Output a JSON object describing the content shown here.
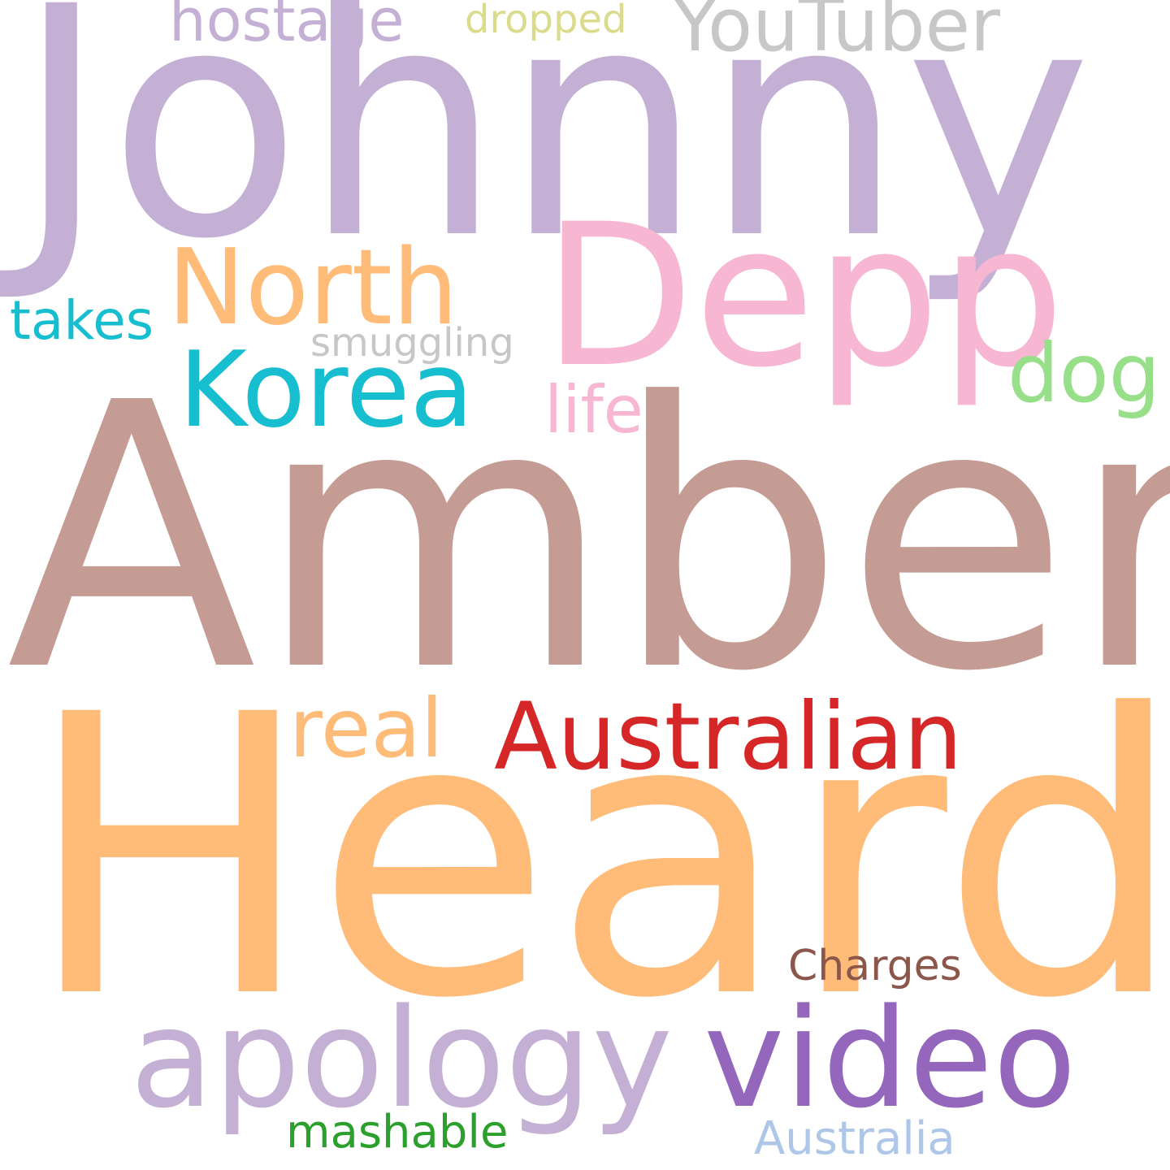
{
  "words": {
    "johnny": {
      "text": "Johnny",
      "color": "#c5b0d5"
    },
    "amber": {
      "text": "Amber",
      "color": "#c49c94"
    },
    "heard": {
      "text": "Heard",
      "color": "#ffbb78"
    },
    "depp": {
      "text": "Depp",
      "color": "#f7b6d2"
    },
    "north": {
      "text": "North",
      "color": "#ffbb78"
    },
    "korea": {
      "text": "Korea",
      "color": "#17becf"
    },
    "australian": {
      "text": "Australian",
      "color": "#d62728"
    },
    "apology": {
      "text": "apology",
      "color": "#c5b0d5"
    },
    "video": {
      "text": "video",
      "color": "#9467bd"
    },
    "youtuber": {
      "text": "YouTuber",
      "color": "#c7c7c7"
    },
    "hostage": {
      "text": "hostage",
      "color": "#c5b0d5"
    },
    "dropped": {
      "text": "dropped",
      "color": "#dbdb8d"
    },
    "takes": {
      "text": "takes",
      "color": "#17becf"
    },
    "smuggling": {
      "text": "smuggling",
      "color": "#c7c7c7"
    },
    "dog": {
      "text": "dog",
      "color": "#98df8a"
    },
    "life": {
      "text": "life",
      "color": "#f7b6d2"
    },
    "real": {
      "text": "real",
      "color": "#ffbb78"
    },
    "charges": {
      "text": "Charges",
      "color": "#8c564b"
    },
    "mashable": {
      "text": "mashable",
      "color": "#2ca02c"
    },
    "australia": {
      "text": "Australia",
      "color": "#aec7e8"
    }
  }
}
